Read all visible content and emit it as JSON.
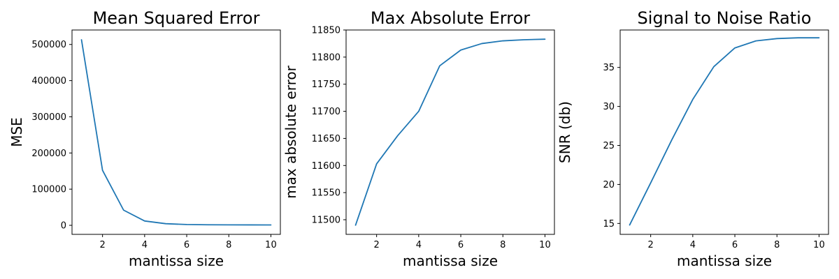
{
  "chart_data": [
    {
      "type": "line",
      "title": "Mean Squared Error",
      "xlabel": "mantissa size",
      "ylabel": "MSE",
      "xlim": [
        0.55,
        10.45
      ],
      "ylim": [
        -25000,
        540000
      ],
      "xticks": [
        2,
        4,
        6,
        8,
        10
      ],
      "yticks": [
        0,
        100000,
        200000,
        300000,
        400000,
        500000
      ],
      "grid": false,
      "series": [
        {
          "color": "#1f77b4",
          "x": [
            1,
            2,
            3,
            4,
            5,
            6,
            7,
            8,
            9,
            10
          ],
          "y": [
            513000,
            152000,
            42000,
            12000,
            4500,
            2200,
            1500,
            1200,
            1100,
            1000
          ]
        }
      ]
    },
    {
      "type": "line",
      "title": "Max Absolute Error",
      "xlabel": "mantissa size",
      "ylabel": "max absolute error",
      "xlim": [
        0.55,
        10.45
      ],
      "ylim": [
        11473,
        11850
      ],
      "xticks": [
        2,
        4,
        6,
        8,
        10
      ],
      "yticks": [
        11500,
        11550,
        11600,
        11650,
        11700,
        11750,
        11800,
        11850
      ],
      "grid": false,
      "series": [
        {
          "color": "#1f77b4",
          "x": [
            1,
            2,
            3,
            4,
            5,
            6,
            7,
            8,
            9,
            10
          ],
          "y": [
            11490,
            11603,
            11655,
            11700,
            11784,
            11813,
            11825,
            11830,
            11832,
            11833
          ]
        }
      ]
    },
    {
      "type": "line",
      "title": "Signal to Noise Ratio",
      "xlabel": "mantissa size",
      "ylabel": "SNR (db)",
      "xlim": [
        0.55,
        10.45
      ],
      "ylim": [
        13.6,
        39.8
      ],
      "xticks": [
        2,
        4,
        6,
        8,
        10
      ],
      "yticks": [
        15,
        20,
        25,
        30,
        35
      ],
      "grid": false,
      "series": [
        {
          "color": "#1f77b4",
          "x": [
            1,
            2,
            3,
            4,
            5,
            6,
            7,
            8,
            9,
            10
          ],
          "y": [
            14.8,
            20.2,
            25.7,
            30.9,
            35.1,
            37.5,
            38.4,
            38.7,
            38.8,
            38.8
          ]
        }
      ]
    }
  ]
}
